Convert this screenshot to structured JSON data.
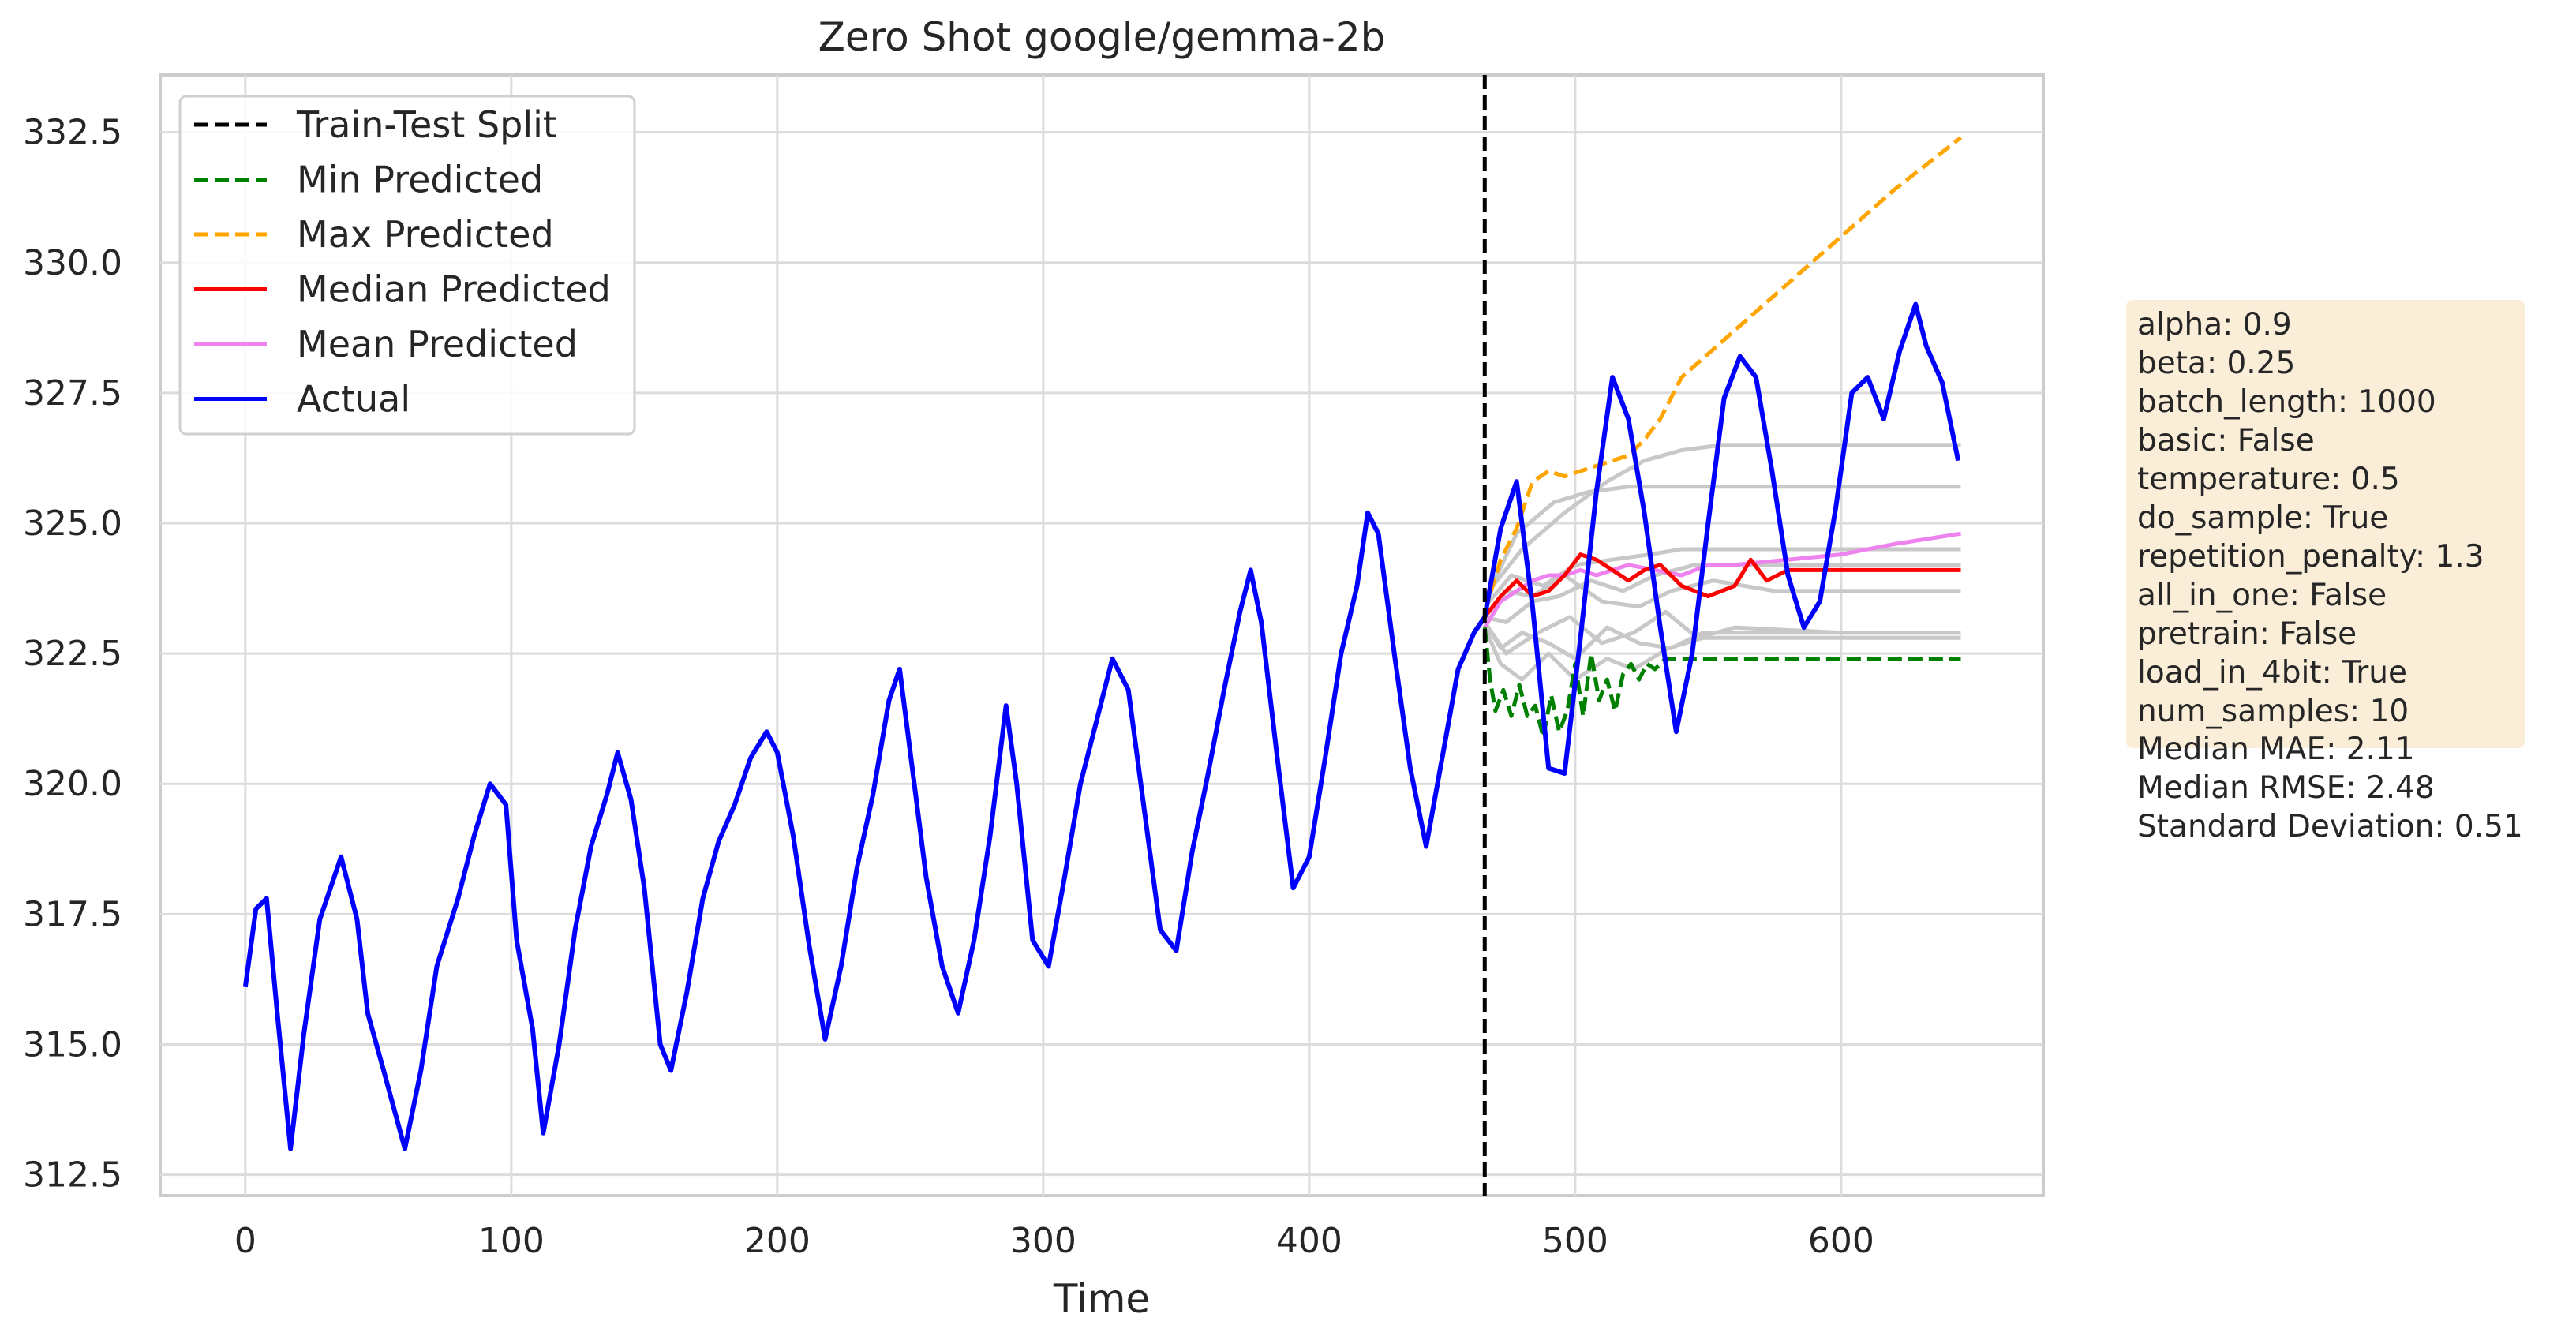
{
  "chart_data": {
    "type": "line",
    "title": "Zero Shot google/gemma-2b",
    "xlabel": "Time",
    "ylabel": "",
    "xlim": [
      -32,
      676
    ],
    "ylim": [
      312.1,
      333.6
    ],
    "xticks": [
      0,
      100,
      200,
      300,
      400,
      500,
      600
    ],
    "yticks": [
      312.5,
      315.0,
      317.5,
      320.0,
      322.5,
      325.0,
      327.5,
      330.0,
      332.5
    ],
    "ytick_labels": [
      "312.5",
      "315.0",
      "317.5",
      "320.0",
      "322.5",
      "325.0",
      "327.5",
      "330.0",
      "332.5"
    ],
    "grid": true,
    "legend_position": "upper left",
    "train_test_split": 466,
    "legend": [
      {
        "label": "Train-Test Split",
        "color": "#000000",
        "dash": true
      },
      {
        "label": "Min Predicted",
        "color": "#008000",
        "dash": true
      },
      {
        "label": "Max Predicted",
        "color": "#ffa500",
        "dash": true
      },
      {
        "label": "Median Predicted",
        "color": "#ff0000",
        "dash": false
      },
      {
        "label": "Mean Predicted",
        "color": "#ee82ee",
        "dash": false
      },
      {
        "label": "Actual",
        "color": "#0000ff",
        "dash": false
      }
    ],
    "series": [
      {
        "name": "Actual",
        "color": "#0000ff",
        "x": [
          0,
          4,
          8,
          12,
          17,
          22,
          28,
          36,
          42,
          46,
          52,
          60,
          66,
          72,
          80,
          86,
          92,
          98,
          102,
          108,
          112,
          118,
          124,
          130,
          136,
          140,
          145,
          150,
          156,
          160,
          166,
          172,
          178,
          184,
          190,
          196,
          200,
          206,
          212,
          218,
          224,
          230,
          236,
          242,
          246,
          250,
          256,
          262,
          268,
          274,
          280,
          286,
          290,
          296,
          302,
          308,
          314,
          320,
          326,
          332,
          338,
          344,
          350,
          356,
          362,
          368,
          374,
          378,
          382,
          388,
          394,
          400,
          406,
          412,
          418,
          422,
          426,
          432,
          438,
          444,
          450,
          456,
          462,
          466,
          472,
          478,
          484,
          490,
          496,
          502,
          508,
          514,
          520,
          526,
          532,
          538,
          544,
          550,
          556,
          562,
          568,
          574,
          580,
          586,
          592,
          598,
          604,
          610,
          616,
          622,
          628,
          632,
          638,
          644
        ],
        "values": [
          316.1,
          317.6,
          317.8,
          315.6,
          313.0,
          315.2,
          317.4,
          318.6,
          317.4,
          315.6,
          314.5,
          313.0,
          314.5,
          316.5,
          317.8,
          319.0,
          320.0,
          319.6,
          317.0,
          315.3,
          313.3,
          315.0,
          317.2,
          318.8,
          319.8,
          320.6,
          319.7,
          318.0,
          315.0,
          314.5,
          316.0,
          317.8,
          318.9,
          319.6,
          320.5,
          321.0,
          320.6,
          319.0,
          316.9,
          315.1,
          316.5,
          318.4,
          319.8,
          321.6,
          322.2,
          320.6,
          318.2,
          316.5,
          315.6,
          317.0,
          319.0,
          321.5,
          320.0,
          317.0,
          316.5,
          318.2,
          320.0,
          321.2,
          322.4,
          321.8,
          319.5,
          317.2,
          316.8,
          318.7,
          320.2,
          321.8,
          323.3,
          324.1,
          323.1,
          320.5,
          318.0,
          318.6,
          320.5,
          322.5,
          323.8,
          325.2,
          324.8,
          322.5,
          320.3,
          318.8,
          320.5,
          322.2,
          322.9,
          323.2,
          324.9,
          325.8,
          323.4,
          320.3,
          320.2,
          322.8,
          325.6,
          327.8,
          327.0,
          325.2,
          323.0,
          321.0,
          322.5,
          325.0,
          327.4,
          328.2,
          327.8,
          326.0,
          324.0,
          323.0,
          323.5,
          325.3,
          327.5,
          327.8,
          327.0,
          328.3,
          329.2,
          328.4,
          327.7,
          326.2
        ]
      },
      {
        "name": "Max Predicted",
        "color": "#ffa500",
        "dash": true,
        "x": [
          466,
          472,
          478,
          484,
          490,
          496,
          502,
          508,
          514,
          520,
          526,
          532,
          540,
          560,
          580,
          600,
          620,
          645
        ],
        "values": [
          323.3,
          324.3,
          324.9,
          325.8,
          326.0,
          325.9,
          326.0,
          326.1,
          326.2,
          326.3,
          326.6,
          327.0,
          327.8,
          328.7,
          329.6,
          330.5,
          331.4,
          332.4
        ]
      },
      {
        "name": "Median Predicted",
        "color": "#ff0000",
        "x": [
          466,
          472,
          478,
          484,
          490,
          496,
          502,
          508,
          514,
          520,
          526,
          532,
          540,
          550,
          560,
          566,
          572,
          580,
          590,
          600,
          620,
          645
        ],
        "values": [
          323.2,
          323.6,
          323.9,
          323.6,
          323.7,
          324.0,
          324.4,
          324.3,
          324.1,
          323.9,
          324.1,
          324.2,
          323.8,
          323.6,
          323.8,
          324.3,
          323.9,
          324.1,
          324.1,
          324.1,
          324.1,
          324.1
        ]
      },
      {
        "name": "Mean Predicted",
        "color": "#ee82ee",
        "x": [
          466,
          472,
          478,
          484,
          490,
          496,
          502,
          508,
          514,
          520,
          530,
          540,
          550,
          560,
          580,
          600,
          620,
          645
        ],
        "values": [
          323.0,
          323.5,
          323.7,
          323.9,
          324.0,
          324.0,
          324.1,
          324.0,
          324.1,
          324.2,
          324.1,
          324.0,
          324.2,
          324.2,
          324.3,
          324.4,
          324.6,
          324.8
        ]
      },
      {
        "name": "Min Predicted",
        "color": "#008000",
        "dash": true,
        "x": [
          466,
          468,
          470,
          473,
          476,
          479,
          482,
          485,
          488,
          491,
          494,
          497,
          500,
          503,
          506,
          509,
          512,
          515,
          518,
          521,
          524,
          527,
          530,
          534,
          540,
          550,
          560,
          580,
          600,
          620,
          645
        ],
        "values": [
          323.0,
          322.0,
          321.4,
          321.8,
          321.3,
          321.9,
          321.3,
          321.5,
          320.9,
          321.7,
          321.0,
          321.4,
          322.3,
          321.3,
          322.5,
          321.6,
          322.0,
          321.4,
          322.1,
          322.3,
          322.0,
          322.3,
          322.2,
          322.4,
          322.4,
          322.4,
          322.4,
          322.4,
          322.4,
          322.4,
          322.4
        ]
      }
    ],
    "samples": [
      {
        "x": [
          466,
          480,
          496,
          512,
          526,
          540,
          555,
          570,
          590,
          620,
          645
        ],
        "values": [
          323.6,
          324.5,
          325.2,
          325.8,
          326.2,
          326.4,
          326.5,
          326.5,
          326.5,
          326.5,
          326.5
        ]
      },
      {
        "x": [
          466,
          478,
          492,
          505,
          520,
          535,
          550,
          570,
          600,
          645
        ],
        "values": [
          323.5,
          324.8,
          325.4,
          325.6,
          325.7,
          325.7,
          325.7,
          325.7,
          325.7,
          325.7
        ]
      },
      {
        "x": [
          466,
          476,
          488,
          500,
          514,
          528,
          540,
          560,
          600,
          645
        ],
        "values": [
          323.4,
          324.0,
          323.8,
          324.2,
          324.3,
          324.4,
          324.5,
          324.5,
          324.5,
          324.5
        ]
      },
      {
        "x": [
          466,
          474,
          484,
          494,
          506,
          518,
          530,
          545,
          560,
          600,
          645
        ],
        "values": [
          323.2,
          323.1,
          323.5,
          323.6,
          323.9,
          323.7,
          324.0,
          324.2,
          324.2,
          324.2,
          324.2
        ]
      },
      {
        "x": [
          466,
          474,
          484,
          496,
          510,
          524,
          536,
          552,
          575,
          600,
          645
        ],
        "values": [
          323.0,
          323.7,
          323.6,
          324.0,
          323.5,
          323.4,
          323.7,
          323.9,
          323.7,
          323.7,
          323.7
        ]
      },
      {
        "x": [
          466,
          472,
          480,
          490,
          500,
          512,
          524,
          536,
          548,
          560,
          600,
          645
        ],
        "values": [
          323.1,
          322.6,
          322.9,
          322.7,
          322.4,
          323.0,
          322.7,
          322.6,
          322.9,
          322.9,
          322.9,
          322.9
        ]
      },
      {
        "x": [
          466,
          472,
          480,
          490,
          500,
          512,
          522,
          535,
          548,
          562,
          600,
          645
        ],
        "values": [
          323.0,
          322.3,
          322.0,
          322.5,
          322.0,
          322.4,
          322.2,
          322.6,
          322.8,
          322.8,
          322.8,
          322.8
        ]
      },
      {
        "x": [
          466,
          474,
          486,
          498,
          510,
          522,
          534,
          546,
          560,
          600,
          645
        ],
        "values": [
          323.1,
          322.5,
          322.9,
          323.2,
          322.7,
          322.9,
          323.3,
          322.8,
          323.0,
          322.9,
          322.9
        ]
      }
    ]
  },
  "params_box": {
    "boxed_lines": [
      "alpha: 0.9",
      "beta: 0.25",
      "batch_length: 1000",
      "basic: False",
      "temperature: 0.5",
      "do_sample: True",
      "repetition_penalty: 1.3",
      "all_in_one: False",
      "pretrain: False",
      "load_in_4bit: True",
      "num_samples: 10"
    ],
    "metric_lines": [
      "Median MAE: 2.11",
      "Median RMSE: 2.48",
      "Standard Deviation: 0.51"
    ],
    "background": "#f5deb3"
  }
}
